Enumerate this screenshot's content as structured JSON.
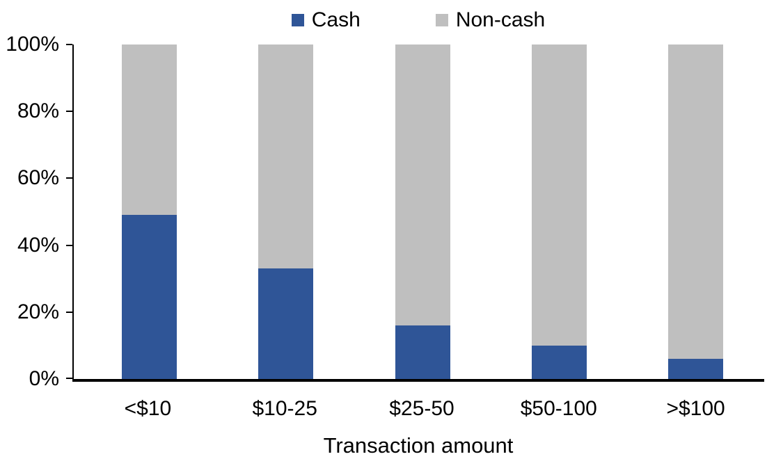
{
  "chart_data": {
    "type": "bar",
    "stacked": true,
    "units": "percent",
    "xlabel": "Transaction amount",
    "ylabel": "",
    "categories": [
      "<$10",
      "$10-25",
      "$25-50",
      "$50-100",
      ">$100"
    ],
    "series": [
      {
        "name": "Cash",
        "color": "#2F5597",
        "values": [
          49,
          33,
          16,
          10,
          6
        ]
      },
      {
        "name": "Non-cash",
        "color": "#BFBFBF",
        "values": [
          51,
          67,
          84,
          90,
          94
        ]
      }
    ],
    "ylim": [
      0,
      100
    ],
    "ytick_values": [
      0,
      20,
      40,
      60,
      80,
      100
    ],
    "ytick_labels": [
      "0%",
      "20%",
      "40%",
      "60%",
      "80%",
      "100%"
    ],
    "legend_position": "top",
    "grid": false,
    "axis_color": "#000000",
    "text_color": "#000000",
    "background_color": "#FFFFFF"
  }
}
